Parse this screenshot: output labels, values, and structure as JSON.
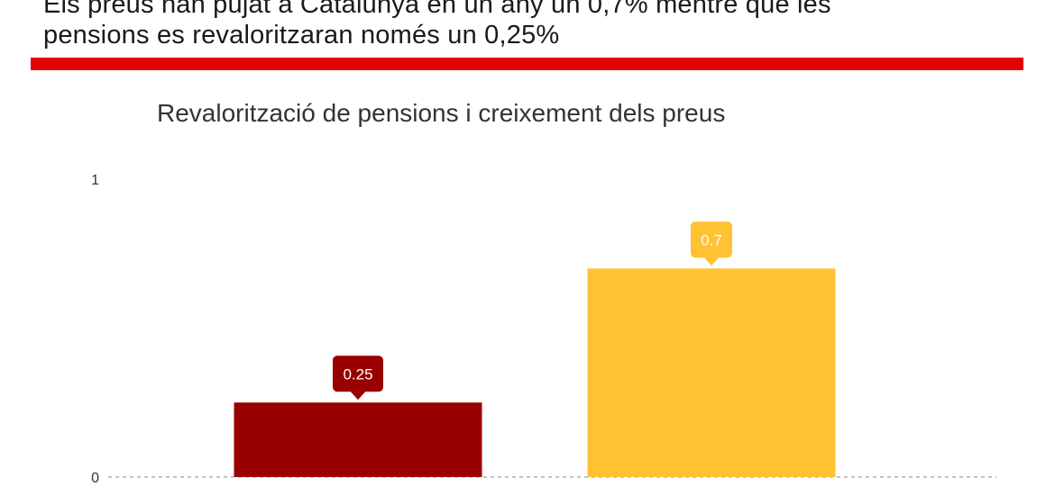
{
  "headline": {
    "line1": "Els preus han pujat a Catalunya en un any un 0,7% mentre que les",
    "line2": "pensions es revaloritzaran només un 0,25%"
  },
  "colors": {
    "rule": "#e30000",
    "pensions": "#990000",
    "prices": "#ffc233"
  },
  "chart_data": {
    "type": "bar",
    "title": "Revalorització de pensions i creixement dels preus",
    "xlabel": "",
    "ylabel": "",
    "ylim": [
      0,
      1
    ],
    "yticks": [
      "0",
      "1"
    ],
    "grid": false,
    "legend": "none",
    "categories": [
      "",
      ""
    ],
    "values": [
      0.25,
      0.7
    ],
    "data_labels": [
      "0.25",
      "0.7"
    ],
    "bar_colors": [
      "#990000",
      "#ffc233"
    ]
  }
}
